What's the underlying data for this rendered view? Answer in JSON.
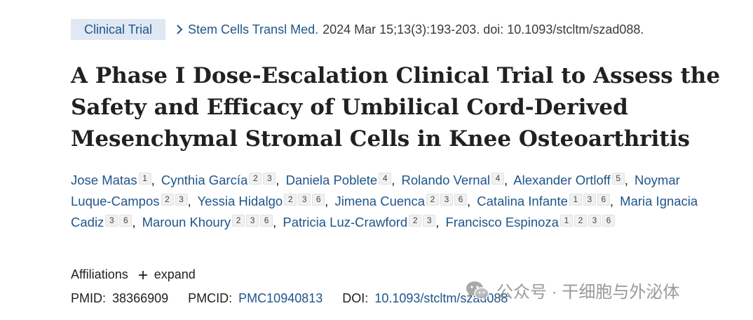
{
  "badge": "Clinical Trial",
  "journal": "Stem Cells Transl Med.",
  "citation": "2024 Mar 15;13(3):193-203. doi: 10.1093/stcltm/szad088.",
  "title": "A Phase I Dose-Escalation Clinical Trial to Assess the Safety and Efficacy of Umbilical Cord-Derived Mesenchymal Stromal Cells in Knee Osteoarthritis",
  "authors": [
    {
      "name": "Jose Matas",
      "affils": [
        "1"
      ]
    },
    {
      "name": "Cynthia García",
      "affils": [
        "2",
        "3"
      ]
    },
    {
      "name": "Daniela Poblete",
      "affils": [
        "4"
      ]
    },
    {
      "name": "Rolando Vernal",
      "affils": [
        "4"
      ]
    },
    {
      "name": "Alexander Ortloff",
      "affils": [
        "5"
      ]
    },
    {
      "name": "Noymar Luque-Campos",
      "affils": [
        "2",
        "3"
      ]
    },
    {
      "name": "Yessia Hidalgo",
      "affils": [
        "2",
        "3",
        "6"
      ]
    },
    {
      "name": "Jimena Cuenca",
      "affils": [
        "2",
        "3",
        "6"
      ]
    },
    {
      "name": "Catalina Infante",
      "affils": [
        "1",
        "3",
        "6"
      ]
    },
    {
      "name": "Maria Ignacia Cadiz",
      "affils": [
        "3",
        "6"
      ]
    },
    {
      "name": "Maroun Khoury",
      "affils": [
        "2",
        "3",
        "6"
      ]
    },
    {
      "name": "Patricia Luz-Crawford",
      "affils": [
        "2",
        "3"
      ]
    },
    {
      "name": "Francisco Espinoza",
      "affils": [
        "1",
        "2",
        "3",
        "6"
      ]
    }
  ],
  "affiliations": {
    "label": "Affiliations",
    "expand_label": "expand"
  },
  "ids": {
    "pmid_label": "PMID:",
    "pmid": "38366909",
    "pmcid_label": "PMCID:",
    "pmcid": "PMC10940813",
    "doi_label": "DOI:",
    "doi": "10.1093/stcltm/szad088"
  },
  "watermark": {
    "text": "公众号 · 干细胞与外泌体",
    "icon": "wechat-icon"
  },
  "colors": {
    "link": "#20558a",
    "badge_bg": "#dfe8f3",
    "text": "#212121"
  }
}
